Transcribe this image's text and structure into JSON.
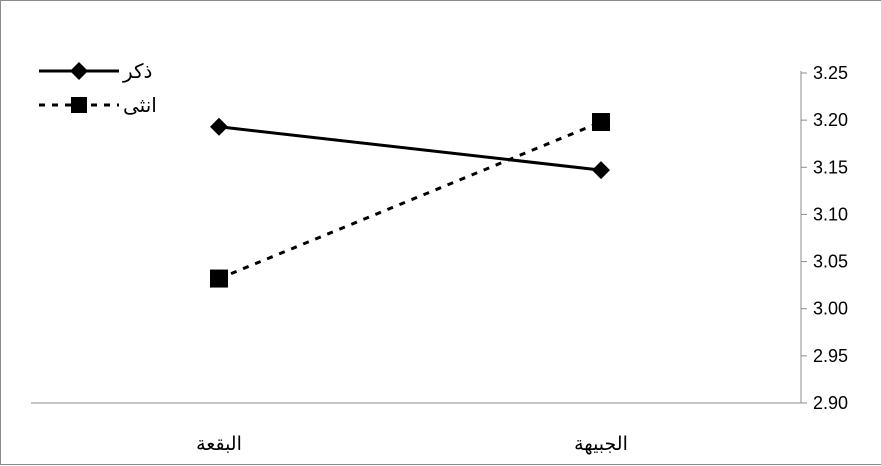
{
  "chart_data": {
    "type": "line",
    "categories": [
      "البقعة",
      "الجبيهة"
    ],
    "series": [
      {
        "name": "ذكر",
        "values": [
          3.193,
          3.147
        ],
        "marker": "diamond",
        "line": "solid",
        "color": "#000000"
      },
      {
        "name": "انثى",
        "values": [
          3.032,
          3.198
        ],
        "marker": "square",
        "line": "dotted",
        "color": "#000000"
      }
    ],
    "yticks": [
      "3.25",
      "3.20",
      "3.15",
      "3.10",
      "3.05",
      "3.00",
      "2.95",
      "2.90"
    ],
    "ylim": [
      2.9,
      3.25
    ],
    "y_axis_side": "right",
    "legend_position": "top-left",
    "grid": false,
    "title": "",
    "xlabel": "",
    "ylabel": ""
  }
}
